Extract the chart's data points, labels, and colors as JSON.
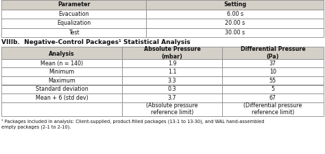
{
  "top_table": {
    "headers": [
      "Parameter",
      "Setting"
    ],
    "rows": [
      [
        "Evacuation",
        "6.00 s"
      ],
      [
        "Equalization",
        "20.00 s"
      ],
      [
        "Test",
        "30.00 s"
      ]
    ]
  },
  "section_title": "VIIIb.  Negative-Control Packages¹ Statistical Analysis",
  "bottom_table": {
    "col1_header": "Analysis",
    "col2_header": "Absolute Pressure\n(mbar)",
    "col3_header": "Differential Pressure\n(Pa)",
    "rows": [
      [
        "Mean (n = 140)",
        "1.9",
        "37"
      ],
      [
        "Minimum",
        "1.1",
        "10"
      ],
      [
        "Maximum",
        "3.3",
        "55"
      ],
      [
        "Standard deviation",
        "0.3",
        "5"
      ],
      [
        "Mean + 6 (std dev)",
        "3.7",
        "67"
      ],
      [
        "",
        "(Absolute pressure\nreference limit)",
        "(Differential pressure\nreference limit)"
      ]
    ]
  },
  "footnote": "¹ Packages included in analysis: Client-supplied, product-filled packages (13-1 to 13-30), and WAL hand-assembled\nempty packages (2-1 to 2-10).",
  "header_bg": "#d4d0c8",
  "line_color": "#888888",
  "text_color": "#111111",
  "font_size": 5.8,
  "title_font_size": 6.5
}
